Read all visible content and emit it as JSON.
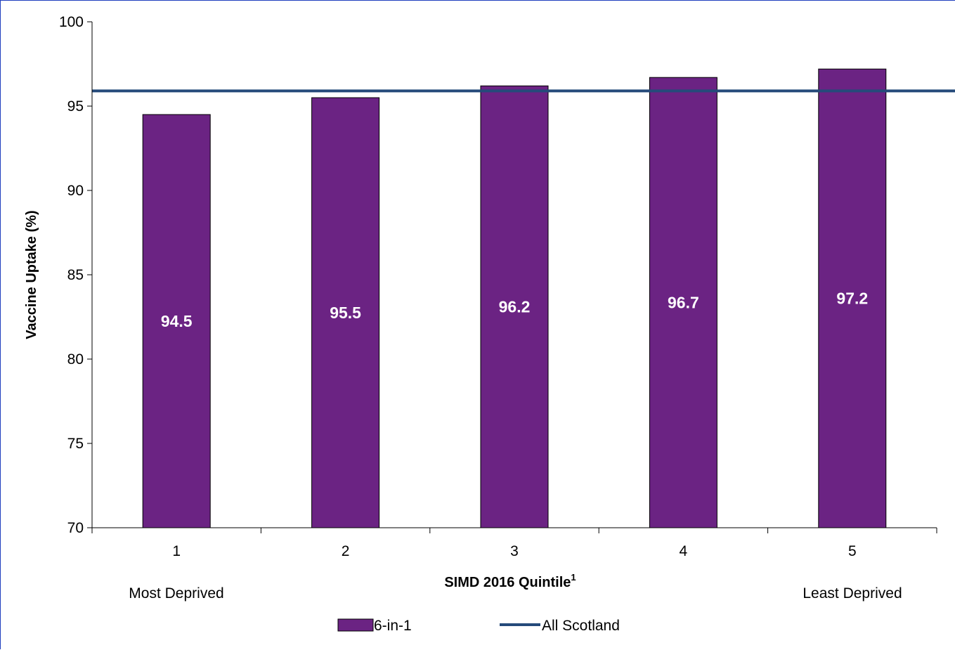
{
  "chart_data": {
    "type": "bar",
    "categories": [
      "1",
      "2",
      "3",
      "4",
      "5"
    ],
    "series": [
      {
        "name": "6-in-1",
        "type": "bar",
        "values": [
          94.5,
          95.5,
          96.2,
          96.7,
          97.2
        ],
        "color": "#6b2383"
      },
      {
        "name": "All Scotland",
        "type": "line",
        "value": 95.9,
        "color": "#254a7a"
      }
    ],
    "data_labels": [
      "94.5",
      "95.5",
      "96.2",
      "96.7",
      "97.2"
    ],
    "xlabel": "SIMD 2016 Quintile",
    "xlabel_superscript": "1",
    "ylabel": "Vaccine Uptake (%)",
    "ylim": [
      70,
      100
    ],
    "yticks": [
      70,
      75,
      80,
      85,
      90,
      95,
      100
    ],
    "ytick_labels": [
      "70",
      "75",
      "80",
      "85",
      "90",
      "95",
      "100"
    ],
    "category_annotations": {
      "left": "Most Deprived",
      "right": "Least Deprived"
    },
    "grid": false,
    "legend_position": "bottom"
  }
}
